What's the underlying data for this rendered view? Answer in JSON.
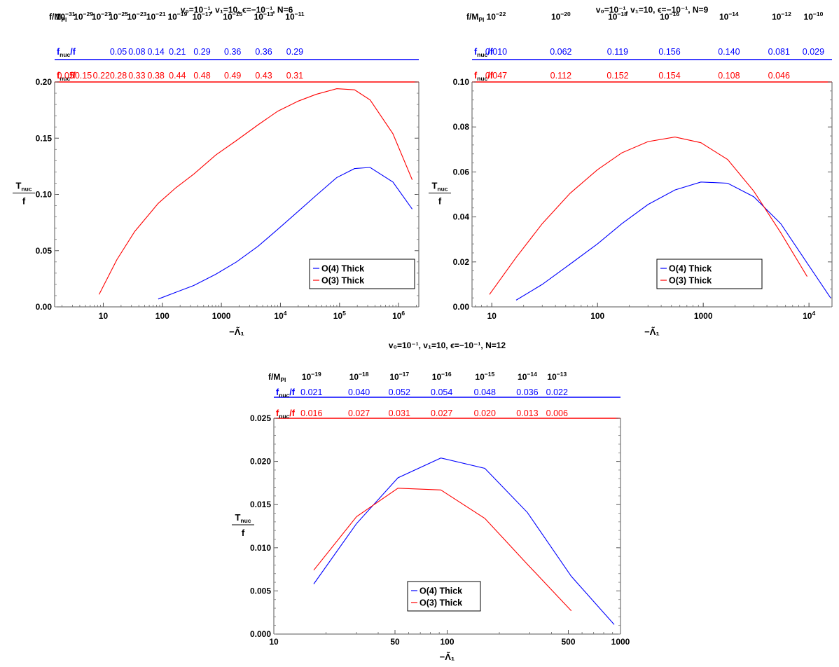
{
  "chart_data": [
    {
      "type": "line",
      "title": "v₀=10⁻¹, v₁=10, ϵ=−10⁻¹, N=6",
      "xlabel": "−Λ̃₁",
      "ylabel_num": "T",
      "ylabel_num_sub": "nuc",
      "ylabel_den": "f",
      "xscale": "log",
      "xlim": [
        1.5,
        2200000
      ],
      "ylim": [
        0,
        0.2
      ],
      "x_ticks": [
        {
          "v": 10,
          "t": "10"
        },
        {
          "v": 100,
          "t": "100"
        },
        {
          "v": 1000,
          "t": "1000"
        },
        {
          "v": 10000,
          "b": "10",
          "e": "4"
        },
        {
          "v": 100000,
          "b": "10",
          "e": "5"
        },
        {
          "v": 1000000,
          "b": "10",
          "e": "6"
        }
      ],
      "y_ticks": [
        {
          "v": 0,
          "t": "0.00"
        },
        {
          "v": 0.05,
          "t": "0.05"
        },
        {
          "v": 0.1,
          "t": "0.10"
        },
        {
          "v": 0.15,
          "t": "0.15"
        },
        {
          "v": 0.2,
          "t": "0.20"
        }
      ],
      "top_axis": {
        "label": "f/M",
        "label_sub": "Pl",
        "ticks": [
          {
            "x": 2.3,
            "b": "10",
            "e": "−31"
          },
          {
            "x": 4.6,
            "b": "10",
            "e": "−29"
          },
          {
            "x": 9.3,
            "b": "10",
            "e": "−27"
          },
          {
            "x": 18,
            "b": "10",
            "e": "−25"
          },
          {
            "x": 37,
            "b": "10",
            "e": "−23"
          },
          {
            "x": 78,
            "b": "10",
            "e": "−21"
          },
          {
            "x": 180,
            "b": "10",
            "e": "−19"
          },
          {
            "x": 470,
            "b": "10",
            "e": "−17"
          },
          {
            "x": 1550,
            "b": "10",
            "e": "−15"
          },
          {
            "x": 5200,
            "b": "10",
            "e": "−13"
          },
          {
            "x": 17500,
            "b": "10",
            "e": "−11"
          }
        ]
      },
      "rows": [
        {
          "label": "f",
          "label_sub": "nuc",
          "label_suffix": "/f",
          "color": "#0000ff",
          "entries": [
            {
              "x": 18,
              "t": "0.05"
            },
            {
              "x": 37,
              "t": "0.08"
            },
            {
              "x": 78,
              "t": "0.14"
            },
            {
              "x": 180,
              "t": "0.21"
            },
            {
              "x": 470,
              "t": "0.29"
            },
            {
              "x": 1550,
              "t": "0.36"
            },
            {
              "x": 5200,
              "t": "0.36"
            },
            {
              "x": 17500,
              "t": "0.29"
            }
          ]
        },
        {
          "label": "f",
          "label_sub": "nuc",
          "label_suffix": "/f",
          "color": "#ff0000",
          "entries": [
            {
              "x": 2.3,
              "t": "0.05"
            },
            {
              "x": 4.6,
              "t": "0.15"
            },
            {
              "x": 9.3,
              "t": "0.22"
            },
            {
              "x": 18,
              "t": "0.28"
            },
            {
              "x": 37,
              "t": "0.33"
            },
            {
              "x": 78,
              "t": "0.38"
            },
            {
              "x": 180,
              "t": "0.44"
            },
            {
              "x": 470,
              "t": "0.48"
            },
            {
              "x": 1550,
              "t": "0.49"
            },
            {
              "x": 5200,
              "t": "0.43"
            },
            {
              "x": 17500,
              "t": "0.31"
            }
          ]
        }
      ],
      "legend": {
        "position": "bottom-right"
      },
      "series": [
        {
          "name": "O(4) Thick",
          "color": "#0000ff",
          "x": [
            85,
            170,
            340,
            800,
            1800,
            4200,
            9000,
            20000,
            40000,
            90000,
            180000,
            330000,
            800000,
            1700000
          ],
          "y": [
            0.007,
            0.013,
            0.019,
            0.029,
            0.04,
            0.054,
            0.069,
            0.085,
            0.099,
            0.115,
            0.123,
            0.124,
            0.111,
            0.087
          ]
        },
        {
          "name": "O(3) Thick",
          "color": "#ff0000",
          "x": [
            8.5,
            17,
            34,
            85,
            170,
            340,
            800,
            1800,
            4200,
            9000,
            20000,
            40000,
            90000,
            180000,
            330000,
            800000,
            1700000
          ],
          "y": [
            0.011,
            0.042,
            0.067,
            0.092,
            0.106,
            0.118,
            0.135,
            0.148,
            0.162,
            0.174,
            0.183,
            0.189,
            0.194,
            0.193,
            0.184,
            0.154,
            0.113
          ]
        }
      ]
    },
    {
      "type": "line",
      "title": "v₀=10⁻¹, v₁=10, ϵ=−10⁻¹, N=9",
      "xlabel": "−Λ̃₁",
      "ylabel_num": "T",
      "ylabel_num_sub": "nuc",
      "ylabel_den": "f",
      "xscale": "log",
      "xlim": [
        6.5,
        16500
      ],
      "ylim": [
        0,
        0.1
      ],
      "x_ticks": [
        {
          "v": 10,
          "t": "10"
        },
        {
          "v": 100,
          "t": "100"
        },
        {
          "v": 1000,
          "t": "1000"
        },
        {
          "v": 10000,
          "b": "10",
          "e": "4"
        }
      ],
      "y_ticks": [
        {
          "v": 0,
          "t": "0.00"
        },
        {
          "v": 0.02,
          "t": "0.02"
        },
        {
          "v": 0.04,
          "t": "0.04"
        },
        {
          "v": 0.06,
          "t": "0.06"
        },
        {
          "v": 0.08,
          "t": "0.08"
        },
        {
          "v": 0.1,
          "t": "0.10"
        }
      ],
      "top_axis": {
        "label": "f/M",
        "label_sub": "Pl",
        "ticks": [
          {
            "x": 11,
            "b": "10",
            "e": "−22"
          },
          {
            "x": 45,
            "b": "10",
            "e": "−20"
          },
          {
            "x": 155,
            "b": "10",
            "e": "−18"
          },
          {
            "x": 480,
            "b": "10",
            "e": "−16"
          },
          {
            "x": 1750,
            "b": "10",
            "e": "−14"
          },
          {
            "x": 5500,
            "b": "10",
            "e": "−12"
          },
          {
            "x": 11000,
            "b": "10",
            "e": "−10"
          }
        ]
      },
      "rows": [
        {
          "label": "f",
          "label_sub": "nuc",
          "label_suffix": "/f",
          "color": "#0000ff",
          "entries": [
            {
              "x": 11,
              "t": "0.010"
            },
            {
              "x": 45,
              "t": "0.062"
            },
            {
              "x": 155,
              "t": "0.119"
            },
            {
              "x": 480,
              "t": "0.156"
            },
            {
              "x": 1750,
              "t": "0.140"
            },
            {
              "x": 5200,
              "t": "0.081"
            },
            {
              "x": 11000,
              "t": "0.029"
            }
          ]
        },
        {
          "label": "f",
          "label_sub": "nuc",
          "label_suffix": "/f",
          "color": "#ff0000",
          "entries": [
            {
              "x": 11,
              "t": "0.047"
            },
            {
              "x": 45,
              "t": "0.112"
            },
            {
              "x": 155,
              "t": "0.152"
            },
            {
              "x": 480,
              "t": "0.154"
            },
            {
              "x": 1750,
              "t": "0.108"
            },
            {
              "x": 5200,
              "t": "0.046"
            }
          ]
        }
      ],
      "legend": {
        "position": "bottom-right"
      },
      "series": [
        {
          "name": "O(4) Thick",
          "color": "#0000ff",
          "x": [
            17,
            30,
            55,
            100,
            170,
            300,
            540,
            950,
            1700,
            3000,
            5400,
            9600,
            16000
          ],
          "y": [
            0.003,
            0.01,
            0.019,
            0.028,
            0.037,
            0.0455,
            0.052,
            0.0555,
            0.055,
            0.049,
            0.037,
            0.0195,
            0.004
          ]
        },
        {
          "name": "O(3) Thick",
          "color": "#ff0000",
          "x": [
            9.5,
            17,
            30,
            55,
            100,
            170,
            300,
            540,
            950,
            1700,
            3000,
            5400,
            9600
          ],
          "y": [
            0.0055,
            0.022,
            0.037,
            0.0505,
            0.061,
            0.0685,
            0.0735,
            0.0755,
            0.073,
            0.0655,
            0.0515,
            0.033,
            0.0135
          ]
        }
      ]
    },
    {
      "type": "line",
      "title": "v₀=10⁻¹, v₁=10, ϵ=−10⁻¹, N=12",
      "xlabel": "−Λ̃₁",
      "ylabel_num": "T",
      "ylabel_num_sub": "nuc",
      "ylabel_den": "f",
      "xscale": "log",
      "xlim": [
        10,
        1000
      ],
      "ylim": [
        0,
        0.025
      ],
      "x_ticks": [
        {
          "v": 10,
          "t": "10"
        },
        {
          "v": 50,
          "t": "50"
        },
        {
          "v": 100,
          "t": "100"
        },
        {
          "v": 500,
          "t": "500"
        },
        {
          "v": 1000,
          "t": "1000"
        }
      ],
      "y_ticks": [
        {
          "v": 0,
          "t": "0.000"
        },
        {
          "v": 0.005,
          "t": "0.005"
        },
        {
          "v": 0.01,
          "t": "0.010"
        },
        {
          "v": 0.015,
          "t": "0.015"
        },
        {
          "v": 0.02,
          "t": "0.020"
        },
        {
          "v": 0.025,
          "t": "0.025"
        }
      ],
      "top_axis": {
        "label": "f/M",
        "label_sub": "Pl",
        "ticks": [
          {
            "x": 16.5,
            "b": "10",
            "e": "−19"
          },
          {
            "x": 31,
            "b": "10",
            "e": "−18"
          },
          {
            "x": 53,
            "b": "10",
            "e": "−17"
          },
          {
            "x": 93,
            "b": "10",
            "e": "−16"
          },
          {
            "x": 165,
            "b": "10",
            "e": "−15"
          },
          {
            "x": 290,
            "b": "10",
            "e": "−14"
          },
          {
            "x": 430,
            "b": "10",
            "e": "−13"
          }
        ]
      },
      "rows": [
        {
          "label": "f",
          "label_sub": "nuc",
          "label_suffix": "/f",
          "color": "#0000ff",
          "entries": [
            {
              "x": 16.5,
              "t": "0.021"
            },
            {
              "x": 31,
              "t": "0.040"
            },
            {
              "x": 53,
              "t": "0.052"
            },
            {
              "x": 93,
              "t": "0.054"
            },
            {
              "x": 165,
              "t": "0.048"
            },
            {
              "x": 290,
              "t": "0.036"
            },
            {
              "x": 430,
              "t": "0.022"
            }
          ]
        },
        {
          "label": "f",
          "label_sub": "nuc",
          "label_suffix": "/f",
          "color": "#ff0000",
          "entries": [
            {
              "x": 16.5,
              "t": "0.016"
            },
            {
              "x": 31,
              "t": "0.027"
            },
            {
              "x": 53,
              "t": "0.031"
            },
            {
              "x": 93,
              "t": "0.027"
            },
            {
              "x": 165,
              "t": "0.020"
            },
            {
              "x": 290,
              "t": "0.013"
            },
            {
              "x": 430,
              "t": "0.006"
            }
          ]
        }
      ],
      "legend": {
        "position": "bottom-center"
      },
      "series": [
        {
          "name": "O(4) Thick",
          "color": "#0000ff",
          "x": [
            17,
            30,
            52,
            92,
            165,
            290,
            520,
            920
          ],
          "y": [
            0.0058,
            0.0128,
            0.0181,
            0.0204,
            0.0192,
            0.0141,
            0.0067,
            0.0011
          ]
        },
        {
          "name": "O(3) Thick",
          "color": "#ff0000",
          "x": [
            17,
            30,
            52,
            92,
            165,
            290,
            520
          ],
          "y": [
            0.0074,
            0.0136,
            0.0169,
            0.0167,
            0.0134,
            0.0081,
            0.0027
          ]
        }
      ]
    }
  ]
}
